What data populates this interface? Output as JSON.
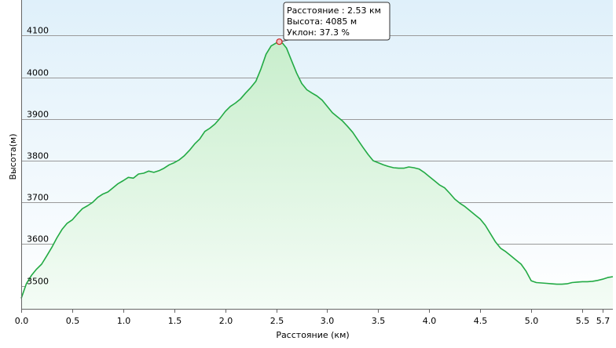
{
  "chart_data": {
    "type": "area",
    "xlabel": "Расстояние (км)",
    "ylabel": "Высота(м)",
    "xlim": [
      0,
      5.8
    ],
    "ylim": [
      3445,
      4185
    ],
    "x_ticks": [
      0.0,
      0.5,
      1.0,
      1.5,
      2.0,
      2.5,
      3.0,
      3.5,
      4.0,
      4.5,
      5.0,
      5.5,
      5.7
    ],
    "x_tick_labels": [
      "0.0",
      "0.5",
      "1.0",
      "1.5",
      "2.0",
      "2.5",
      "3.0",
      "3.5",
      "4.0",
      "4.5",
      "5.0",
      "5.5",
      "5.7"
    ],
    "y_ticks": [
      3500,
      3600,
      3700,
      3800,
      3900,
      4000,
      4100
    ],
    "y_tick_labels": [
      "3500",
      "3600",
      "3700",
      "3800",
      "3900",
      "4000",
      "4100"
    ],
    "grid": "horizontal",
    "line_color": "#22aa44",
    "series": [
      {
        "x": [
          0.0,
          0.05,
          0.1,
          0.15,
          0.2,
          0.25,
          0.3,
          0.35,
          0.4,
          0.45,
          0.5,
          0.55,
          0.6,
          0.65,
          0.7,
          0.75,
          0.8,
          0.85,
          0.9,
          0.95,
          1.0,
          1.05,
          1.1,
          1.15,
          1.2,
          1.25,
          1.3,
          1.35,
          1.4,
          1.45,
          1.5,
          1.55,
          1.6,
          1.65,
          1.7,
          1.75,
          1.8,
          1.85,
          1.9,
          1.95,
          2.0,
          2.05,
          2.1,
          2.15,
          2.2,
          2.25,
          2.3,
          2.35,
          2.4,
          2.45,
          2.5,
          2.53,
          2.55,
          2.6,
          2.65,
          2.7,
          2.75,
          2.8,
          2.85,
          2.9,
          2.95,
          3.0,
          3.05,
          3.1,
          3.15,
          3.2,
          3.25,
          3.3,
          3.35,
          3.4,
          3.45,
          3.5,
          3.55,
          3.6,
          3.65,
          3.7,
          3.75,
          3.8,
          3.85,
          3.9,
          3.95,
          4.0,
          4.05,
          4.1,
          4.15,
          4.2,
          4.25,
          4.3,
          4.35,
          4.4,
          4.45,
          4.5,
          4.55,
          4.6,
          4.65,
          4.7,
          4.75,
          4.8,
          4.85,
          4.9,
          4.95,
          5.0,
          5.05,
          5.1,
          5.15,
          5.2,
          5.25,
          5.3,
          5.35,
          5.4,
          5.45,
          5.5,
          5.55,
          5.6,
          5.65,
          5.7,
          5.75,
          5.8
        ],
        "y": [
          3470,
          3505,
          3525,
          3540,
          3552,
          3572,
          3592,
          3615,
          3635,
          3650,
          3658,
          3672,
          3685,
          3692,
          3700,
          3712,
          3720,
          3725,
          3735,
          3745,
          3752,
          3760,
          3758,
          3768,
          3770,
          3775,
          3772,
          3776,
          3782,
          3790,
          3795,
          3802,
          3812,
          3825,
          3840,
          3852,
          3870,
          3878,
          3888,
          3902,
          3918,
          3930,
          3938,
          3948,
          3962,
          3975,
          3990,
          4020,
          4055,
          4075,
          4082,
          4085,
          4085,
          4070,
          4040,
          4010,
          3985,
          3970,
          3962,
          3955,
          3945,
          3930,
          3915,
          3905,
          3895,
          3882,
          3868,
          3850,
          3832,
          3815,
          3800,
          3795,
          3790,
          3786,
          3783,
          3782,
          3782,
          3785,
          3783,
          3780,
          3772,
          3762,
          3752,
          3742,
          3735,
          3722,
          3708,
          3698,
          3690,
          3680,
          3670,
          3660,
          3645,
          3625,
          3605,
          3590,
          3582,
          3572,
          3562,
          3552,
          3535,
          3512,
          3508,
          3507,
          3506,
          3505,
          3504,
          3504,
          3505,
          3508,
          3509,
          3510,
          3510,
          3511,
          3513,
          3516,
          3520,
          3522
        ]
      }
    ],
    "annotation": {
      "x": 2.53,
      "y": 4085,
      "lines": [
        "Расстояние : 2.53 км",
        "Высота: 4085 м",
        "Уклон: 37.3 %"
      ]
    }
  }
}
